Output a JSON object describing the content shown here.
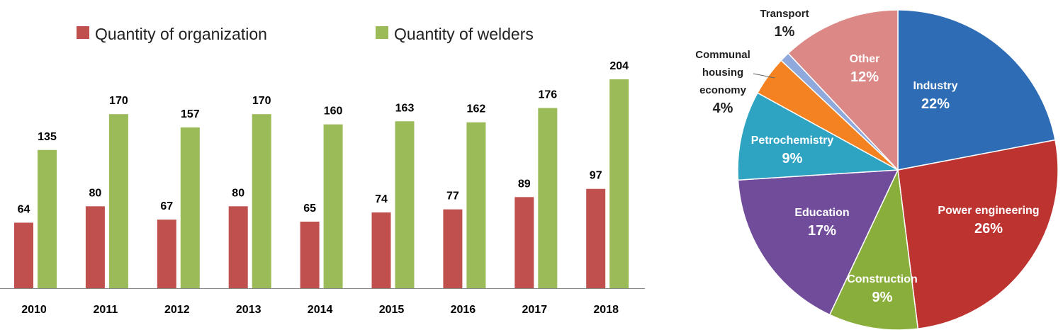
{
  "chart_data": [
    {
      "type": "bar",
      "title": "",
      "xlabel": "",
      "ylabel": "",
      "ylim": [
        0,
        210
      ],
      "grid": false,
      "legend_placement": "top",
      "categories": [
        "2010",
        "2011",
        "2012",
        "2013",
        "2014",
        "2015",
        "2016",
        "2017",
        "2018"
      ],
      "series": [
        {
          "name": "Quantity of organization",
          "color": "#C0504D",
          "values": [
            64,
            80,
            67,
            80,
            65,
            74,
            77,
            89,
            97
          ]
        },
        {
          "name": "Quantity of welders",
          "color": "#9BBB59",
          "values": [
            135,
            170,
            157,
            170,
            160,
            163,
            162,
            176,
            204
          ]
        }
      ]
    },
    {
      "type": "pie",
      "title": "",
      "slices": [
        {
          "label": "Industry",
          "value": 22,
          "pct": "22%",
          "color": "#2E6DB5"
        },
        {
          "label": "Power engineering",
          "value": 26,
          "pct": "26%",
          "color": "#BD3330"
        },
        {
          "label": "Construction",
          "value": 9,
          "pct": "9%",
          "color": "#8AAE3B"
        },
        {
          "label": "Education",
          "value": 17,
          "pct": "17%",
          "color": "#714C9A"
        },
        {
          "label": "Petrochemistry",
          "value": 9,
          "pct": "9%",
          "color": "#2EA3C2"
        },
        {
          "label": "Communal housing economy",
          "label_lines": [
            "Communal",
            "housing",
            "economy"
          ],
          "value": 4,
          "pct": "4%",
          "color": "#F58220"
        },
        {
          "label": "Transport",
          "value": 1,
          "pct": "1%",
          "color": "#8FA9DC"
        },
        {
          "label": "Other",
          "value": 12,
          "pct": "12%",
          "color": "#DC8886"
        }
      ]
    }
  ]
}
